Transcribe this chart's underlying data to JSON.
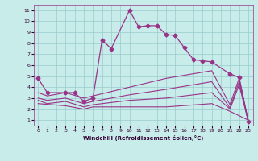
{
  "xlabel": "Windchill (Refroidissement éolien,°C)",
  "background_color": "#c8ecea",
  "line_color": "#993388",
  "grid_color": "#99cccc",
  "xlim": [
    -0.5,
    23.5
  ],
  "ylim": [
    0.5,
    11.5
  ],
  "xticks": [
    0,
    1,
    2,
    3,
    4,
    5,
    6,
    7,
    8,
    9,
    10,
    11,
    12,
    13,
    14,
    15,
    16,
    17,
    18,
    19,
    20,
    21,
    22,
    23
  ],
  "yticks": [
    1,
    2,
    3,
    4,
    5,
    6,
    7,
    8,
    9,
    10,
    11
  ],
  "lines": [
    {
      "x": [
        0,
        1,
        3,
        4,
        5,
        6,
        7,
        8,
        10,
        11,
        12,
        13,
        14,
        15,
        16,
        17,
        18,
        19,
        21,
        22,
        23
      ],
      "y": [
        4.8,
        3.5,
        3.5,
        3.5,
        2.7,
        3.0,
        8.3,
        7.5,
        11.0,
        9.5,
        9.6,
        9.6,
        8.8,
        8.7,
        7.6,
        6.5,
        6.4,
        6.3,
        5.2,
        4.9,
        0.9
      ],
      "marker": "D",
      "markersize": 2.5,
      "linewidth": 0.9
    },
    {
      "x": [
        0,
        1,
        3,
        5,
        6,
        10,
        14,
        19,
        21,
        22,
        23
      ],
      "y": [
        3.5,
        3.2,
        3.5,
        3.0,
        3.2,
        4.0,
        4.8,
        5.5,
        2.4,
        4.8,
        0.9
      ],
      "marker": null,
      "linewidth": 0.8
    },
    {
      "x": [
        0,
        1,
        3,
        5,
        6,
        10,
        14,
        19,
        21,
        22,
        23
      ],
      "y": [
        3.0,
        2.8,
        3.0,
        2.5,
        2.7,
        3.3,
        3.8,
        4.5,
        2.1,
        4.5,
        0.9
      ],
      "marker": null,
      "linewidth": 0.8
    },
    {
      "x": [
        0,
        1,
        3,
        5,
        6,
        10,
        14,
        19,
        21,
        22,
        23
      ],
      "y": [
        2.8,
        2.5,
        2.7,
        2.2,
        2.4,
        2.8,
        3.0,
        3.5,
        2.0,
        4.2,
        0.9
      ],
      "marker": null,
      "linewidth": 0.8
    },
    {
      "x": [
        0,
        3,
        5,
        6,
        10,
        14,
        19,
        21,
        23
      ],
      "y": [
        2.5,
        2.3,
        2.0,
        2.2,
        2.2,
        2.2,
        2.5,
        1.8,
        1.0
      ],
      "marker": null,
      "linewidth": 0.8
    }
  ]
}
